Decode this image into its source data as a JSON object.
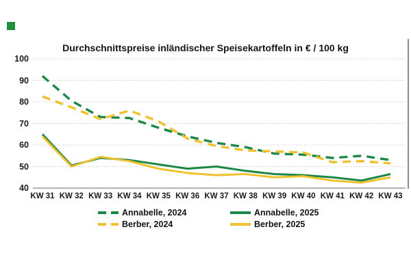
{
  "brand_square": {
    "color": "#22903f"
  },
  "chart_data": {
    "type": "line",
    "title": "Durchschnittspreise inländischer Speisekartoffeln in € / 100 kg",
    "xlabel": "",
    "ylabel": "€ / 100 kg",
    "categories": [
      "KW 31",
      "KW 32",
      "KW 33",
      "KW 34",
      "KW 35",
      "KW 36",
      "KW 37",
      "KW 38",
      "KW 39",
      "KW 40",
      "KW 41",
      "KW 42",
      "KW 43"
    ],
    "y_ticks": [
      100,
      90,
      80,
      70,
      60,
      50,
      40
    ],
    "ylim": [
      40,
      100
    ],
    "grid": "horizontal-dotted",
    "legend_position": "bottom",
    "series": [
      {
        "name": "Annabelle, 2024",
        "color": "#1a8746",
        "style": "dashed",
        "values": [
          92,
          80.5,
          73,
          72.5,
          68,
          64,
          61,
          59,
          56,
          55.5,
          54,
          55,
          53
        ]
      },
      {
        "name": "Berber, 2024",
        "color": "#efc12e",
        "style": "dashed",
        "values": [
          82.5,
          77.5,
          72,
          76,
          71,
          63,
          59.5,
          57.5,
          57,
          56.5,
          52,
          52.5,
          51.5
        ]
      },
      {
        "name": "Annabelle, 2025",
        "color": "#1a8746",
        "style": "solid",
        "values": [
          65,
          50.5,
          54,
          53,
          51,
          49,
          50,
          48,
          46.5,
          46,
          45,
          43.5,
          46.5
        ]
      },
      {
        "name": "Berber, 2025",
        "color": "#efc12e",
        "style": "solid",
        "values": [
          64,
          50,
          54.5,
          52.5,
          49,
          47,
          46,
          46.5,
          45,
          45.5,
          43.5,
          42.5,
          45
        ]
      }
    ],
    "axis_colors": {
      "grid": "#c9c9c9",
      "axis": "#9a9a9a",
      "right_border": "#8c8c8c"
    }
  },
  "legend_order": [
    0,
    2,
    1,
    3
  ]
}
